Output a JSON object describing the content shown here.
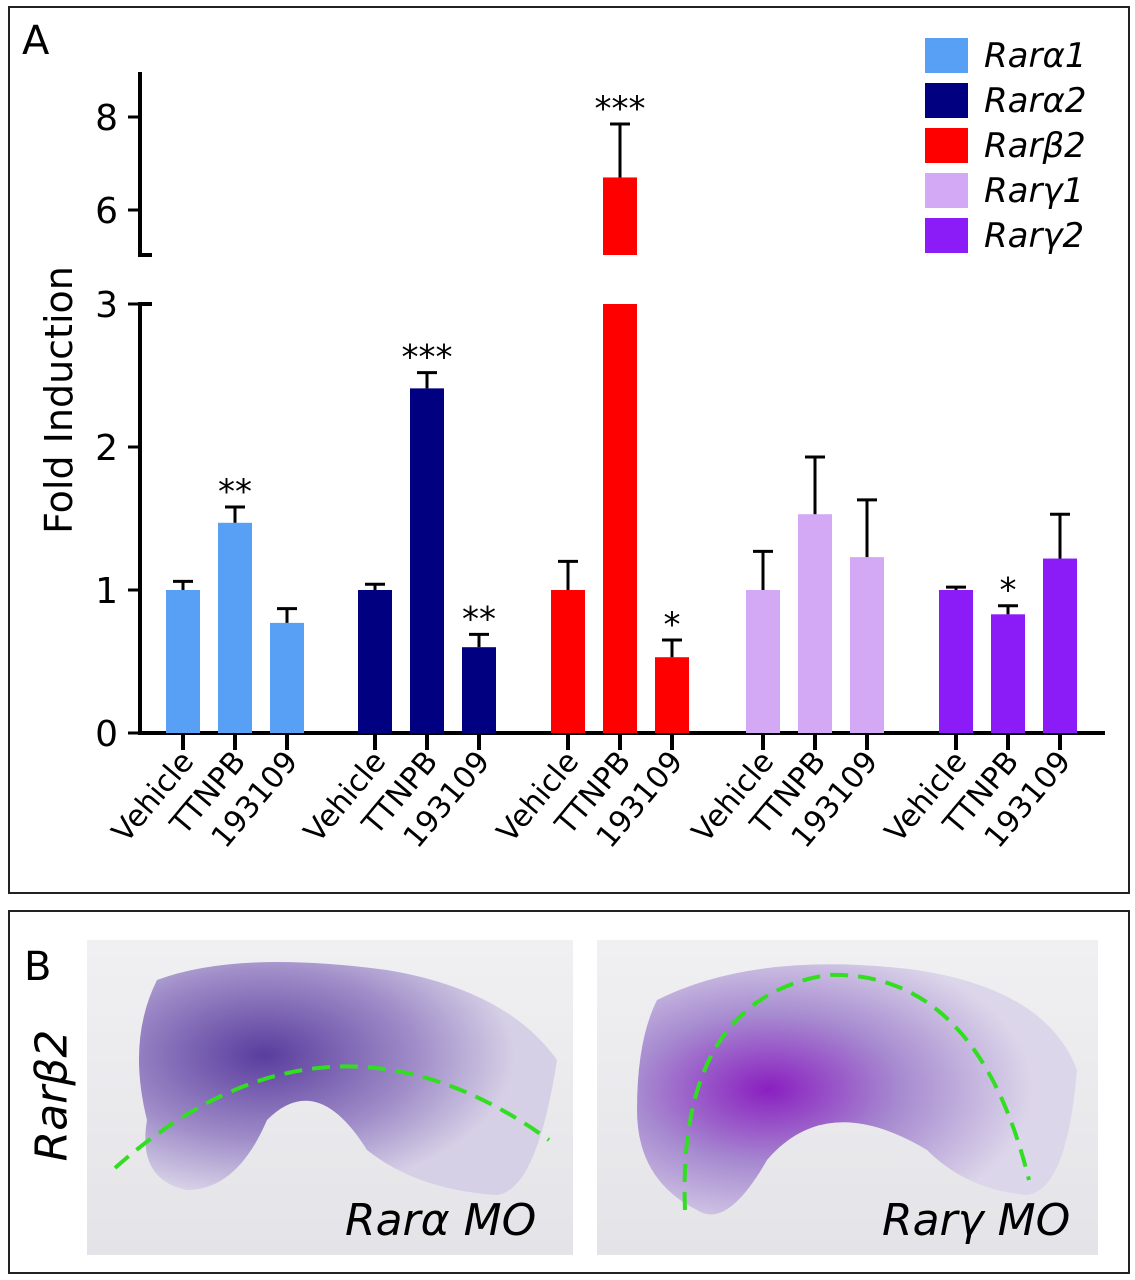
{
  "panel_a_label": "A",
  "panel_b_label": "B",
  "chart_data": {
    "type": "bar",
    "ylabel": "Fold Induction",
    "y_axis": "broken",
    "ylim": [
      0,
      8.5
    ],
    "y_break": [
      3,
      5
    ],
    "yticks": [
      "0",
      "1",
      "2",
      "3",
      "6",
      "8"
    ],
    "categories": [
      "Vehicle",
      "TTNPB",
      "193109"
    ],
    "legend_position": "top-right",
    "series": [
      {
        "name": "Rarα1",
        "color": "#58a0f5",
        "values": [
          1.0,
          1.47,
          0.77
        ],
        "errors": [
          1.06,
          1.58,
          0.87
        ],
        "significance": [
          "",
          "**",
          ""
        ]
      },
      {
        "name": "Rarα2",
        "color": "#000080",
        "values": [
          1.0,
          2.41,
          0.6
        ],
        "errors": [
          1.04,
          2.52,
          0.69
        ],
        "significance": [
          "",
          "***",
          "**"
        ]
      },
      {
        "name": "Rarβ2",
        "color": "#ff0000",
        "values": [
          1.0,
          6.7,
          0.53
        ],
        "errors": [
          1.2,
          7.85,
          0.65
        ],
        "significance": [
          "",
          "***",
          "*"
        ]
      },
      {
        "name": "Rarγ1",
        "color": "#d3a9f5",
        "values": [
          1.0,
          1.53,
          1.23
        ],
        "errors": [
          1.27,
          1.93,
          1.63
        ],
        "significance": [
          "",
          "",
          ""
        ]
      },
      {
        "name": "Rarγ2",
        "color": "#8b1cf7",
        "values": [
          1.0,
          0.83,
          1.22
        ],
        "errors": [
          1.02,
          0.89,
          1.53
        ],
        "significance": [
          "",
          "*",
          ""
        ]
      }
    ]
  },
  "panel_b": {
    "row_label": "Rarβ2",
    "images": [
      {
        "label": "Rarα MO"
      },
      {
        "label": "Rarγ MO"
      }
    ],
    "dashed_line_color": "#33dd22"
  }
}
